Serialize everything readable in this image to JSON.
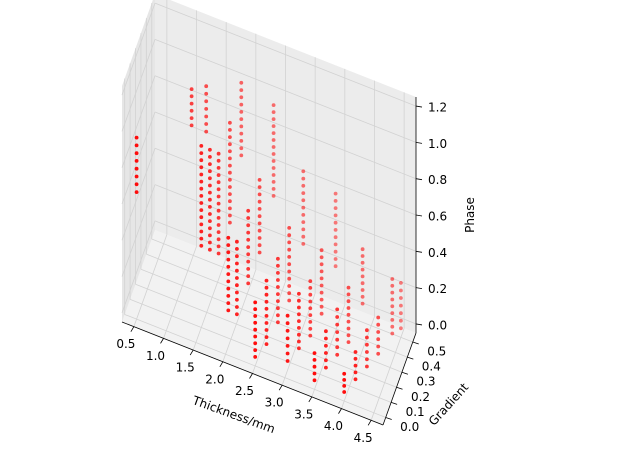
{
  "chart_data": {
    "type": "scatter",
    "projection": "3d",
    "title": "",
    "xlabel": "Thickness/mm",
    "ylabel": "Gradient",
    "zlabel": "Phase",
    "xlim": [
      0.3,
      4.7
    ],
    "ylim": [
      -0.05,
      0.56
    ],
    "zlim": [
      -0.05,
      1.25
    ],
    "x_ticks": [
      "0.5",
      "1.0",
      "1.5",
      "2.0",
      "2.5",
      "3.0",
      "3.5",
      "4.0",
      "4.5"
    ],
    "y_ticks": [
      "0.0",
      "0.1",
      "0.2",
      "0.3",
      "0.4",
      "0.5"
    ],
    "z_ticks": [
      "0.0",
      "0.2",
      "0.4",
      "0.6",
      "0.8",
      "1.0",
      "1.2"
    ],
    "grid": true,
    "marker_color": "#ff0000",
    "marker": "point",
    "series": [
      {
        "note_columns": "each column: x (thickness mm), y (gradient), z range [zmin, zmax] sampled as vertical stack of points",
        "columns": [
          {
            "x": 0.5,
            "y": 0.0,
            "z": [
              0.65,
              0.95
            ]
          },
          {
            "x": 1.2,
            "y": 0.25,
            "z": [
              0.9,
              1.1
            ]
          },
          {
            "x": 1.4,
            "y": 0.3,
            "z": [
              0.85,
              1.1
            ]
          },
          {
            "x": 1.5,
            "y": 0.1,
            "z": [
              0.4,
              0.95
            ]
          },
          {
            "x": 1.6,
            "y": 0.15,
            "z": [
              0.35,
              0.9
            ]
          },
          {
            "x": 1.7,
            "y": 0.2,
            "z": [
              0.3,
              0.85
            ]
          },
          {
            "x": 1.8,
            "y": 0.3,
            "z": [
              0.4,
              0.95
            ]
          },
          {
            "x": 1.9,
            "y": 0.4,
            "z": [
              0.7,
              1.1
            ]
          },
          {
            "x": 2.0,
            "y": 0.05,
            "z": [
              0.15,
              0.55
            ]
          },
          {
            "x": 2.1,
            "y": 0.1,
            "z": [
              0.1,
              0.5
            ]
          },
          {
            "x": 2.2,
            "y": 0.2,
            "z": [
              0.2,
              0.6
            ]
          },
          {
            "x": 2.3,
            "y": 0.3,
            "z": [
              0.3,
              0.7
            ]
          },
          {
            "x": 2.4,
            "y": 0.45,
            "z": [
              0.5,
              1.0
            ]
          },
          {
            "x": 2.5,
            "y": 0.0,
            "z": [
              0.0,
              0.3
            ]
          },
          {
            "x": 2.6,
            "y": 0.1,
            "z": [
              0.0,
              0.35
            ]
          },
          {
            "x": 2.7,
            "y": 0.2,
            "z": [
              0.05,
              0.4
            ]
          },
          {
            "x": 2.8,
            "y": 0.3,
            "z": [
              0.1,
              0.5
            ]
          },
          {
            "x": 2.9,
            "y": 0.45,
            "z": [
              0.3,
              0.7
            ]
          },
          {
            "x": 3.0,
            "y": 0.05,
            "z": [
              0.0,
              0.25
            ]
          },
          {
            "x": 3.1,
            "y": 0.15,
            "z": [
              0.0,
              0.3
            ]
          },
          {
            "x": 3.2,
            "y": 0.25,
            "z": [
              0.0,
              0.3
            ]
          },
          {
            "x": 3.3,
            "y": 0.35,
            "z": [
              0.05,
              0.4
            ]
          },
          {
            "x": 3.4,
            "y": 0.5,
            "z": [
              0.2,
              0.6
            ]
          },
          {
            "x": 3.5,
            "y": 0.0,
            "z": [
              0.0,
              0.15
            ]
          },
          {
            "x": 3.6,
            "y": 0.1,
            "z": [
              0.0,
              0.2
            ]
          },
          {
            "x": 3.7,
            "y": 0.2,
            "z": [
              0.0,
              0.25
            ]
          },
          {
            "x": 3.8,
            "y": 0.3,
            "z": [
              0.0,
              0.3
            ]
          },
          {
            "x": 3.9,
            "y": 0.45,
            "z": [
              0.1,
              0.4
            ]
          },
          {
            "x": 4.0,
            "y": 0.0,
            "z": [
              0.0,
              0.1
            ]
          },
          {
            "x": 4.1,
            "y": 0.1,
            "z": [
              0.0,
              0.15
            ]
          },
          {
            "x": 4.2,
            "y": 0.2,
            "z": [
              0.0,
              0.2
            ]
          },
          {
            "x": 4.3,
            "y": 0.3,
            "z": [
              0.0,
              0.2
            ]
          },
          {
            "x": 4.4,
            "y": 0.45,
            "z": [
              0.0,
              0.3
            ]
          },
          {
            "x": 4.5,
            "y": 0.5,
            "z": [
              0.0,
              0.25
            ]
          }
        ]
      }
    ]
  }
}
